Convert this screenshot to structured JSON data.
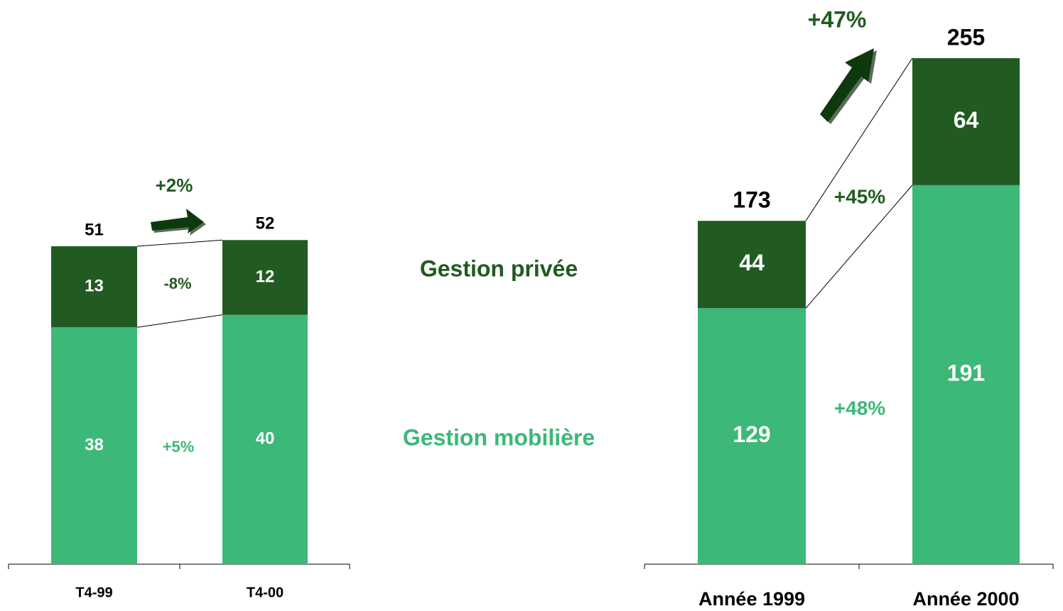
{
  "legend": [
    {
      "name": "Gestion privée",
      "color": "#215b21"
    },
    {
      "name": "Gestion mobilière",
      "color": "#3cb878"
    }
  ],
  "chart_data": [
    {
      "type": "bar",
      "stacked": true,
      "categories": [
        "T4-99",
        "T4-00"
      ],
      "series": [
        {
          "values": [
            13,
            12
          ]
        },
        {
          "values": [
            38,
            40
          ]
        }
      ],
      "totals": [
        51,
        52
      ],
      "series_changes": [
        "-8%",
        "+5%"
      ],
      "total_change": "+2%",
      "ylim": [
        0,
        60
      ]
    },
    {
      "type": "bar",
      "stacked": true,
      "categories": [
        "Année 1999",
        "Année 2000"
      ],
      "series": [
        {
          "values": [
            44,
            64
          ]
        },
        {
          "values": [
            129,
            191
          ]
        }
      ],
      "totals": [
        173,
        255
      ],
      "series_changes": [
        "+45%",
        "+48%"
      ],
      "total_change": "+47%",
      "ylim": [
        0,
        280
      ]
    }
  ]
}
